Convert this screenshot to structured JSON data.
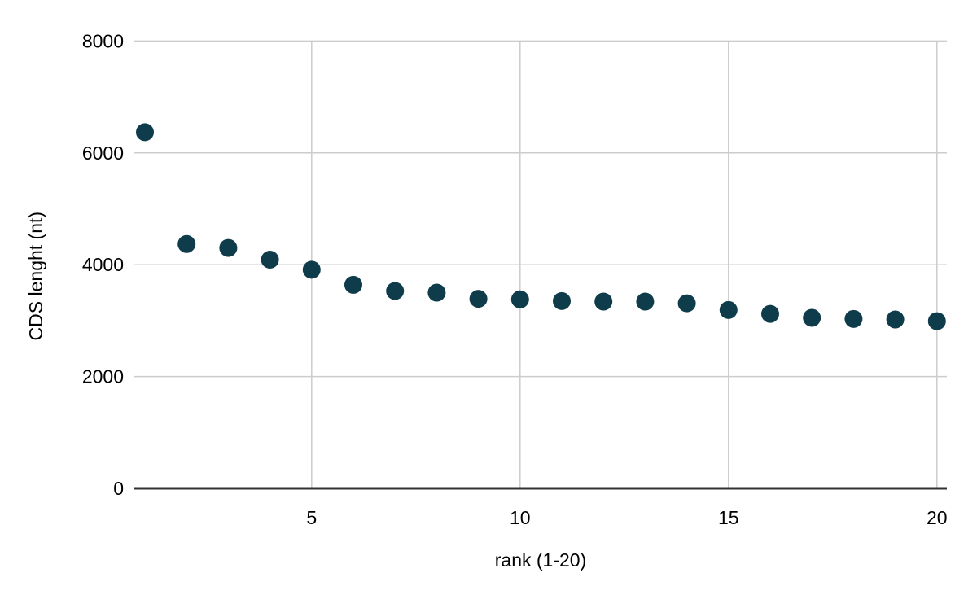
{
  "chart": {
    "background_color": "#ffffff",
    "point_color": "#0f3c4b",
    "gridline_color": "#cccccc",
    "axis_line_color": "#333333",
    "label_color": "#000000",
    "tick_font_size": 23,
    "title_font_size": 23,
    "point_radius": 11
  },
  "chart_data": {
    "type": "scatter",
    "title": "",
    "xlabel": "rank (1-20)",
    "ylabel": "CDS lenght (nt)",
    "x": [
      1,
      2,
      3,
      4,
      5,
      6,
      7,
      8,
      9,
      10,
      11,
      12,
      13,
      14,
      15,
      16,
      17,
      18,
      19,
      20
    ],
    "y": [
      6370,
      4370,
      4300,
      4090,
      3910,
      3640,
      3530,
      3500,
      3390,
      3380,
      3350,
      3340,
      3340,
      3310,
      3190,
      3120,
      3050,
      3030,
      3020,
      2990
    ],
    "x_ticks": [
      5,
      10,
      15,
      20
    ],
    "y_ticks": [
      0,
      2000,
      4000,
      6000,
      8000
    ],
    "y_tick_labels": [
      "0",
      "2000",
      "4000",
      "6000",
      "8000"
    ],
    "x_tick_labels": [
      "5",
      "10",
      "15",
      "20"
    ],
    "xlim": [
      0.75,
      20.25
    ],
    "ylim": [
      0,
      8000
    ],
    "grid": true,
    "legend": false,
    "legend_position": "none"
  }
}
